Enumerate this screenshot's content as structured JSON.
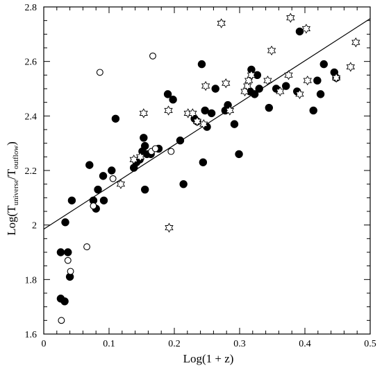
{
  "chart_data": {
    "type": "scatter",
    "xlabel": "Log(1 + z)",
    "ylabel": {
      "main": "Log(T",
      "sub1": "universe",
      "mid": "/T",
      "sub2": "outflow",
      "end": ")"
    },
    "xlim": [
      0,
      0.5
    ],
    "ylim": [
      1.6,
      2.8
    ],
    "x_ticks": [
      "0",
      "0.1",
      "0.2",
      "0.3",
      "0.4",
      "0.5"
    ],
    "y_ticks": [
      "1.6",
      "1.8",
      "2",
      "2.2",
      "2.4",
      "2.6",
      "2.8"
    ],
    "grid": false,
    "fit_line": {
      "x": [
        0,
        0.5
      ],
      "y": [
        1.985,
        2.757
      ]
    },
    "series": [
      {
        "marker": "filled-circle",
        "points": [
          [
            0.026,
            1.9
          ],
          [
            0.026,
            1.73
          ],
          [
            0.032,
            1.72
          ],
          [
            0.033,
            2.01
          ],
          [
            0.037,
            1.9
          ],
          [
            0.04,
            1.81
          ],
          [
            0.043,
            2.09
          ],
          [
            0.07,
            2.22
          ],
          [
            0.076,
            2.09
          ],
          [
            0.08,
            2.06
          ],
          [
            0.083,
            2.13
          ],
          [
            0.091,
            2.18
          ],
          [
            0.092,
            2.09
          ],
          [
            0.104,
            2.2
          ],
          [
            0.11,
            2.39
          ],
          [
            0.138,
            2.21
          ],
          [
            0.142,
            2.23
          ],
          [
            0.147,
            2.24
          ],
          [
            0.151,
            2.27
          ],
          [
            0.153,
            2.32
          ],
          [
            0.155,
            2.29
          ],
          [
            0.155,
            2.13
          ],
          [
            0.158,
            2.26
          ],
          [
            0.164,
            2.26
          ],
          [
            0.176,
            2.28
          ],
          [
            0.19,
            2.48
          ],
          [
            0.198,
            2.46
          ],
          [
            0.209,
            2.31
          ],
          [
            0.214,
            2.15
          ],
          [
            0.231,
            2.39
          ],
          [
            0.235,
            2.38
          ],
          [
            0.242,
            2.59
          ],
          [
            0.244,
            2.23
          ],
          [
            0.247,
            2.42
          ],
          [
            0.25,
            2.36
          ],
          [
            0.257,
            2.41
          ],
          [
            0.263,
            2.5
          ],
          [
            0.278,
            2.42
          ],
          [
            0.282,
            2.44
          ],
          [
            0.292,
            2.37
          ],
          [
            0.299,
            2.26
          ],
          [
            0.316,
            2.49
          ],
          [
            0.318,
            2.57
          ],
          [
            0.323,
            2.48
          ],
          [
            0.327,
            2.55
          ],
          [
            0.33,
            2.5
          ],
          [
            0.345,
            2.43
          ],
          [
            0.356,
            2.5
          ],
          [
            0.371,
            2.51
          ],
          [
            0.388,
            2.49
          ],
          [
            0.392,
            2.71
          ],
          [
            0.413,
            2.42
          ],
          [
            0.419,
            2.53
          ],
          [
            0.424,
            2.48
          ],
          [
            0.429,
            2.59
          ],
          [
            0.445,
            2.56
          ],
          [
            0.448,
            2.54
          ]
        ]
      },
      {
        "marker": "open-circle",
        "points": [
          [
            0.027,
            1.65
          ],
          [
            0.037,
            1.87
          ],
          [
            0.041,
            1.83
          ],
          [
            0.066,
            1.92
          ],
          [
            0.076,
            2.07
          ],
          [
            0.086,
            2.56
          ],
          [
            0.106,
            2.17
          ],
          [
            0.165,
            2.27
          ],
          [
            0.167,
            2.62
          ],
          [
            0.171,
            2.28
          ],
          [
            0.195,
            2.27
          ]
        ]
      },
      {
        "marker": "open-star",
        "points": [
          [
            0.118,
            2.15
          ],
          [
            0.138,
            2.24
          ],
          [
            0.148,
            2.25
          ],
          [
            0.153,
            2.41
          ],
          [
            0.191,
            2.42
          ],
          [
            0.192,
            1.99
          ],
          [
            0.221,
            2.41
          ],
          [
            0.228,
            2.41
          ],
          [
            0.235,
            2.38
          ],
          [
            0.245,
            2.37
          ],
          [
            0.248,
            2.51
          ],
          [
            0.272,
            2.74
          ],
          [
            0.279,
            2.52
          ],
          [
            0.285,
            2.42
          ],
          [
            0.308,
            2.49
          ],
          [
            0.312,
            2.51
          ],
          [
            0.314,
            2.53
          ],
          [
            0.318,
            2.55
          ],
          [
            0.343,
            2.53
          ],
          [
            0.349,
            2.64
          ],
          [
            0.362,
            2.49
          ],
          [
            0.375,
            2.55
          ],
          [
            0.378,
            2.76
          ],
          [
            0.392,
            2.48
          ],
          [
            0.402,
            2.72
          ],
          [
            0.404,
            2.53
          ],
          [
            0.448,
            2.54
          ],
          [
            0.47,
            2.58
          ],
          [
            0.478,
            2.67
          ]
        ]
      }
    ]
  }
}
